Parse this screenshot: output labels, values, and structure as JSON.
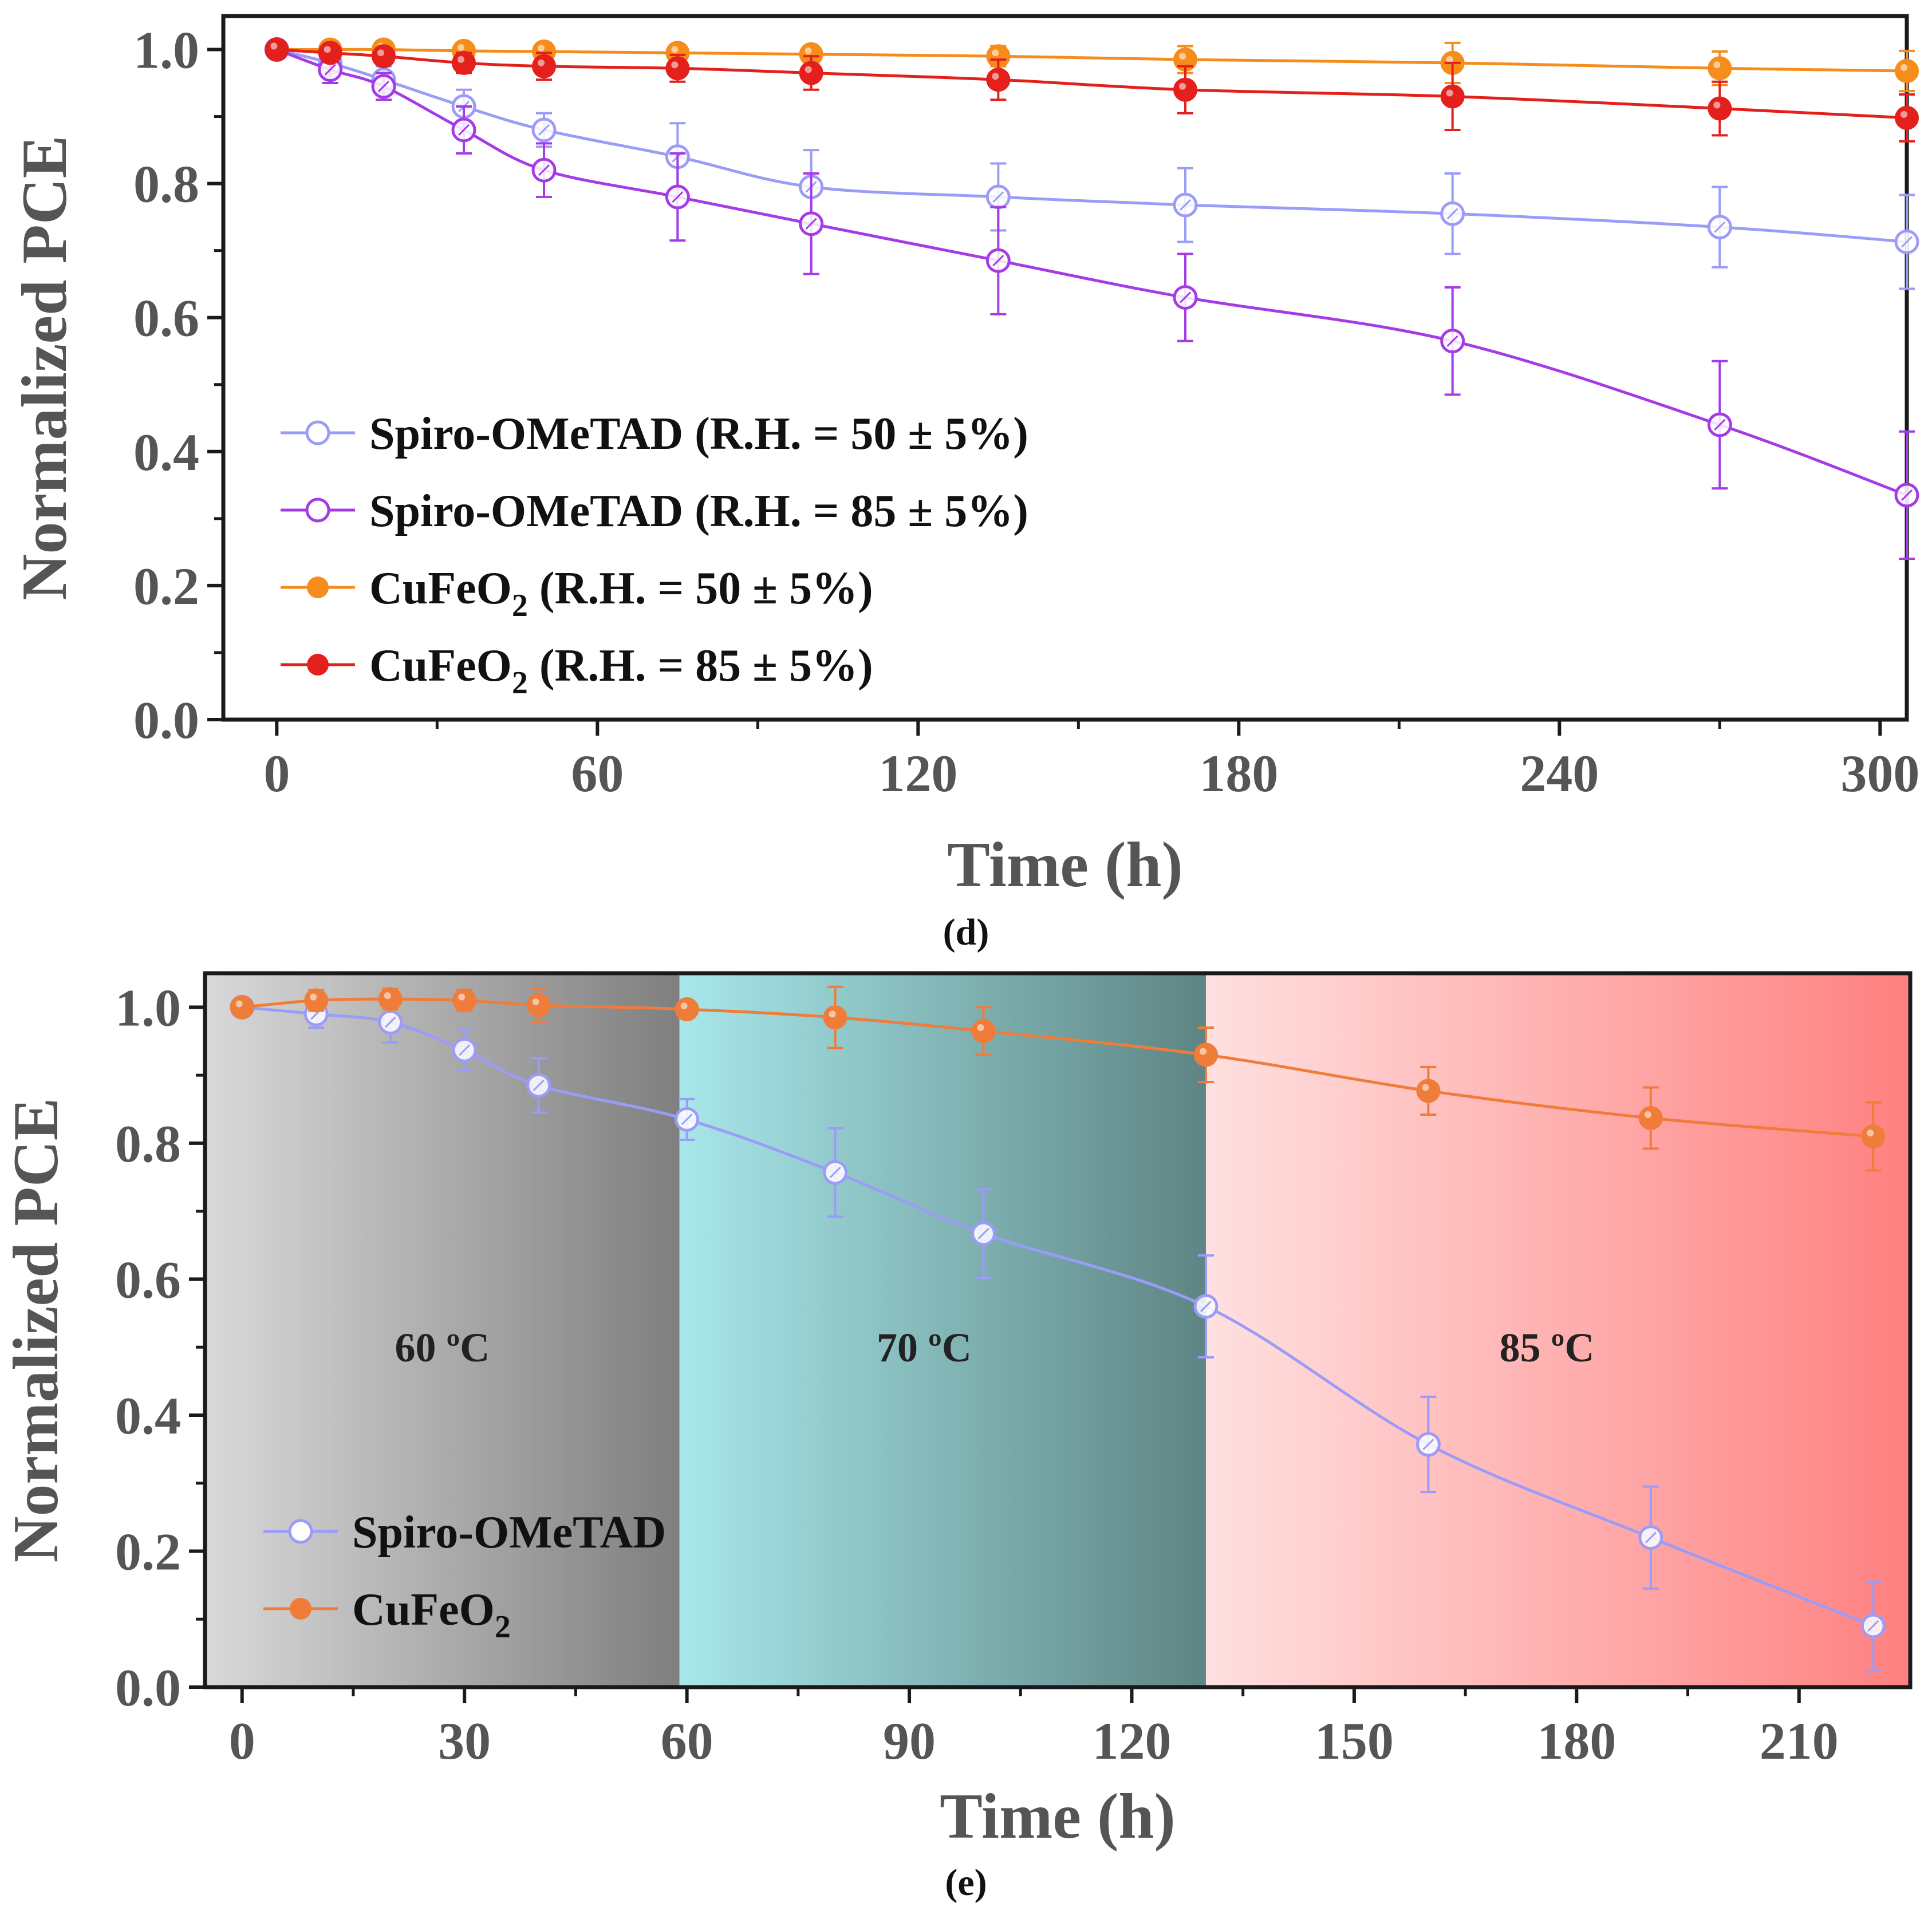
{
  "figure": {
    "panels": [
      "d",
      "e"
    ]
  },
  "chart_data": [
    {
      "id": "d",
      "type": "line",
      "panel_label": "(d)",
      "title": "",
      "xlabel": "Time (h)",
      "ylabel": "Normalized PCE",
      "xlim": [
        -10,
        305
      ],
      "ylim": [
        0.0,
        1.05
      ],
      "xticks": [
        "0",
        "60",
        "120",
        "180",
        "240",
        "300"
      ],
      "xtick_values": [
        0,
        60,
        120,
        180,
        240,
        300
      ],
      "yticks": [
        "0.0",
        "0.2",
        "0.4",
        "0.6",
        "0.8",
        "1.0"
      ],
      "ytick_values": [
        0.0,
        0.2,
        0.4,
        0.6,
        0.8,
        1.0
      ],
      "grid": false,
      "legend_position": "left-middle",
      "series": [
        {
          "name": "Spiro-OMeTAD (R.H. = 50 ± 5%)",
          "legend": {
            "main": "Spiro-OMeTAD (R.H. = 50 ± 5%)",
            "sub": ""
          },
          "color": "#9A9CF7",
          "marker": "open",
          "x": [
            0,
            10,
            20,
            35,
            50,
            75,
            100,
            135,
            170,
            220,
            270,
            305
          ],
          "y": [
            1.0,
            0.98,
            0.955,
            0.915,
            0.88,
            0.84,
            0.795,
            0.78,
            0.768,
            0.755,
            0.735,
            0.713
          ],
          "err": [
            0,
            0.02,
            0.02,
            0.025,
            0.025,
            0.05,
            0.055,
            0.05,
            0.055,
            0.06,
            0.06,
            0.07
          ]
        },
        {
          "name": "Spiro-OMeTAD (R.H. = 85 ± 5%)",
          "legend": {
            "main": "Spiro-OMeTAD (R.H. = 85 ± 5%)",
            "sub": ""
          },
          "color": "#A43BE6",
          "marker": "open",
          "x": [
            0,
            10,
            20,
            35,
            50,
            75,
            100,
            135,
            170,
            220,
            270,
            305
          ],
          "y": [
            1.0,
            0.97,
            0.945,
            0.88,
            0.82,
            0.78,
            0.74,
            0.685,
            0.63,
            0.565,
            0.44,
            0.335
          ],
          "err": [
            0,
            0.02,
            0.02,
            0.035,
            0.04,
            0.065,
            0.075,
            0.08,
            0.065,
            0.08,
            0.095,
            0.095
          ]
        },
        {
          "name": "CuFeO2 (R.H. = 50 ± 5%)",
          "legend": {
            "main": "CuFeO",
            "sub": "2",
            "tail": " (R.H. = 50 ± 5%)"
          },
          "color": "#F58C1B",
          "marker": "filled",
          "x": [
            0,
            10,
            20,
            35,
            50,
            75,
            100,
            135,
            170,
            220,
            270,
            305
          ],
          "y": [
            1.0,
            1.0,
            1.0,
            0.998,
            0.997,
            0.995,
            0.993,
            0.99,
            0.985,
            0.98,
            0.972,
            0.968
          ],
          "err": [
            0,
            0.005,
            0.008,
            0.01,
            0.01,
            0.012,
            0.012,
            0.015,
            0.02,
            0.03,
            0.025,
            0.03
          ]
        },
        {
          "name": "CuFeO2 (R.H. = 85 ± 5%)",
          "legend": {
            "main": "CuFeO",
            "sub": "2",
            "tail": " (R.H. = 85 ± 5%)"
          },
          "color": "#E3201B",
          "marker": "filled",
          "x": [
            0,
            10,
            20,
            35,
            50,
            75,
            100,
            135,
            170,
            220,
            270,
            305
          ],
          "y": [
            1.0,
            0.995,
            0.99,
            0.98,
            0.975,
            0.972,
            0.965,
            0.955,
            0.94,
            0.93,
            0.912,
            0.898
          ],
          "err": [
            0,
            0.01,
            0.01,
            0.015,
            0.02,
            0.02,
            0.025,
            0.03,
            0.035,
            0.05,
            0.04,
            0.035
          ]
        }
      ]
    },
    {
      "id": "e",
      "type": "line",
      "panel_label": "(e)",
      "title": "",
      "xlabel": "Time (h)",
      "ylabel": "Normalized PCE",
      "xlim": [
        -5,
        225
      ],
      "ylim": [
        0.0,
        1.05
      ],
      "xticks": [
        "0",
        "30",
        "60",
        "90",
        "120",
        "150",
        "180",
        "210"
      ],
      "xtick_values": [
        0,
        30,
        60,
        90,
        120,
        150,
        180,
        210
      ],
      "yticks": [
        "0.0",
        "0.2",
        "0.4",
        "0.6",
        "0.8",
        "1.0"
      ],
      "ytick_values": [
        0.0,
        0.2,
        0.4,
        0.6,
        0.8,
        1.0
      ],
      "grid": false,
      "legend_position": "bottom-left",
      "regions": [
        {
          "label": "60 ºC",
          "x_start": -5,
          "x_end": 59,
          "label_x": 27,
          "label_y": 0.5,
          "color_from": "#D9D9D9",
          "color_to": "#7F7F7F"
        },
        {
          "label": "70 ºC",
          "x_start": 59,
          "x_end": 130,
          "label_x": 92,
          "label_y": 0.5,
          "color_from": "#A8E7EA",
          "color_to": "#5E8584"
        },
        {
          "label": "85 ºC",
          "x_start": 130,
          "x_end": 225,
          "label_x": 176,
          "label_y": 0.5,
          "color_from": "#FFE0E0",
          "color_to": "#FF8080"
        }
      ],
      "series": [
        {
          "name": "Spiro-OMeTAD",
          "legend": {
            "main": "Spiro-OMeTAD",
            "sub": ""
          },
          "color": "#9A9CF7",
          "marker": "open",
          "x": [
            0,
            10,
            20,
            30,
            40,
            60,
            80,
            100,
            130,
            160,
            190,
            220
          ],
          "y": [
            1.0,
            0.99,
            0.978,
            0.937,
            0.885,
            0.835,
            0.757,
            0.667,
            0.56,
            0.357,
            0.22,
            0.09
          ],
          "err": [
            0,
            0.02,
            0.03,
            0.03,
            0.04,
            0.03,
            0.065,
            0.065,
            0.075,
            0.07,
            0.075,
            0.065
          ]
        },
        {
          "name": "CuFeO2",
          "legend": {
            "main": "CuFeO",
            "sub": "2"
          },
          "color": "#F07C3A",
          "marker": "filled",
          "x": [
            0,
            10,
            20,
            30,
            40,
            60,
            80,
            100,
            130,
            160,
            190,
            220
          ],
          "y": [
            1.0,
            1.01,
            1.012,
            1.01,
            1.003,
            0.997,
            0.985,
            0.965,
            0.93,
            0.877,
            0.837,
            0.81
          ],
          "err": [
            0,
            0.015,
            0.015,
            0.015,
            0.025,
            0.012,
            0.045,
            0.035,
            0.04,
            0.035,
            0.045,
            0.05
          ]
        }
      ]
    }
  ]
}
